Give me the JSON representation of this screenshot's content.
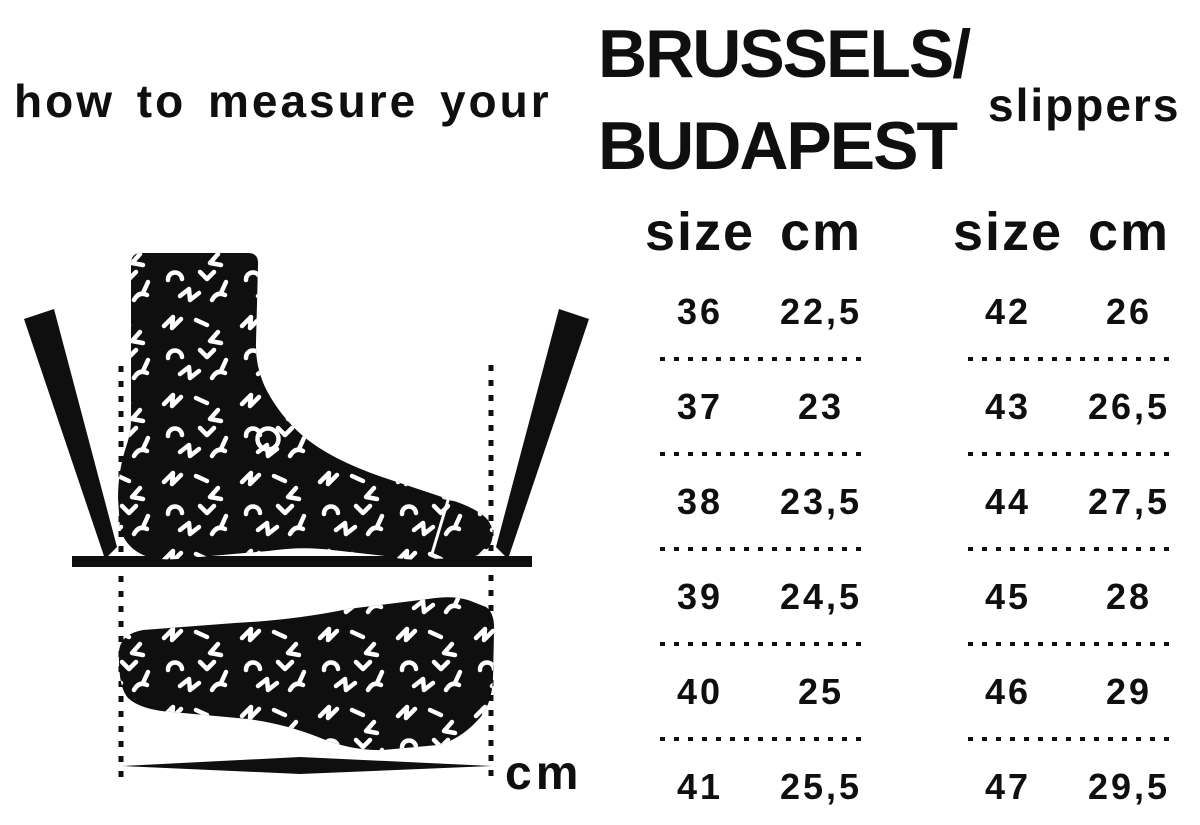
{
  "page": {
    "heading": "how to measure your",
    "brand": {
      "line1": "BRUSSELS/",
      "line2": "BUDAPEST"
    },
    "product": "slippers"
  },
  "illustration": {
    "unit_label": "cm"
  },
  "size_tables": [
    {
      "headers": [
        "size",
        "cm"
      ],
      "rows": [
        [
          "36",
          "22,5"
        ],
        [
          "37",
          "23"
        ],
        [
          "38",
          "23,5"
        ],
        [
          "39",
          "24,5"
        ],
        [
          "40",
          "25"
        ],
        [
          "41",
          "25,5"
        ]
      ]
    },
    {
      "headers": [
        "size",
        "cm"
      ],
      "rows": [
        [
          "42",
          "26"
        ],
        [
          "43",
          "26,5"
        ],
        [
          "44",
          "27,5"
        ],
        [
          "45",
          "28"
        ],
        [
          "46",
          "29"
        ],
        [
          "47",
          "29,5"
        ]
      ]
    }
  ],
  "colors": {
    "ink": "#0f0f0f",
    "background": "#ffffff"
  }
}
